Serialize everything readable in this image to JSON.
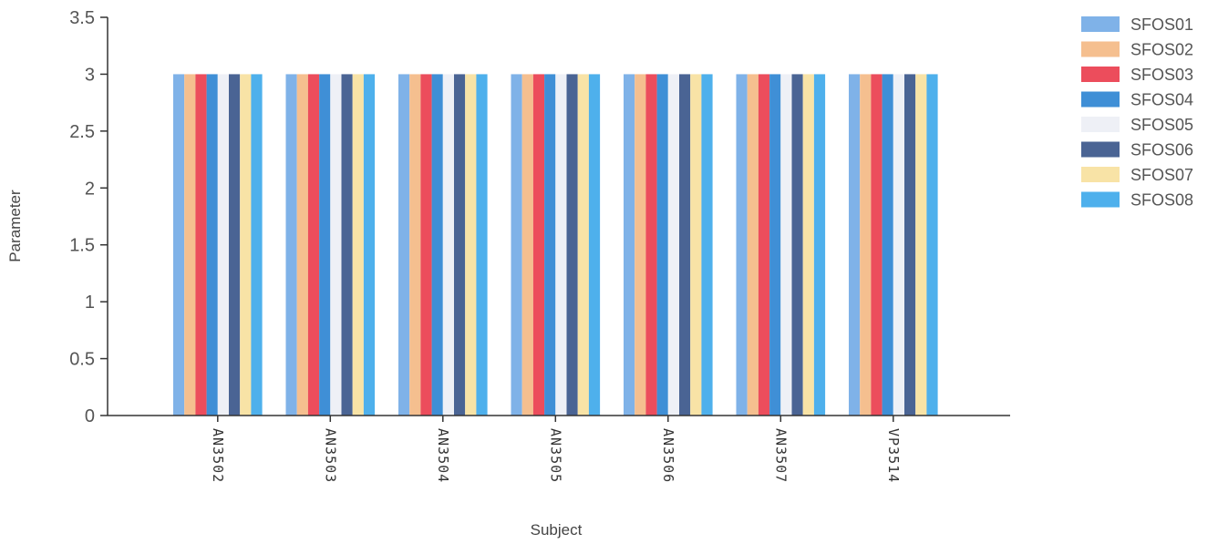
{
  "chart_data": {
    "type": "bar",
    "title": "",
    "xlabel": "Subject",
    "ylabel": "Parameter",
    "ylim": [
      0,
      3.5
    ],
    "yticks": [
      "0",
      "0.5",
      "1",
      "1.5",
      "2",
      "2.5",
      "3",
      "3.5"
    ],
    "grid": false,
    "legend_position": "top-right",
    "categories": [
      "AN3502",
      "AN3503",
      "AN3504",
      "AN3505",
      "AN3506",
      "AN3507",
      "VP3514"
    ],
    "series": [
      {
        "name": "SFOS01",
        "color": "#7fb2e8",
        "values": [
          3,
          3,
          3,
          3,
          3,
          3,
          3
        ]
      },
      {
        "name": "SFOS02",
        "color": "#f5bf8f",
        "values": [
          3,
          3,
          3,
          3,
          3,
          3,
          3
        ]
      },
      {
        "name": "SFOS03",
        "color": "#ec4d5c",
        "values": [
          3,
          3,
          3,
          3,
          3,
          3,
          3
        ]
      },
      {
        "name": "SFOS04",
        "color": "#3f8fd6",
        "values": [
          3,
          3,
          3,
          3,
          3,
          3,
          3
        ]
      },
      {
        "name": "SFOS05",
        "color": "#eef0f6",
        "values": [
          3,
          3,
          3,
          3,
          3,
          3,
          3
        ]
      },
      {
        "name": "SFOS06",
        "color": "#4a6494",
        "values": [
          3,
          3,
          3,
          3,
          3,
          3,
          3
        ]
      },
      {
        "name": "SFOS07",
        "color": "#f8e3a6",
        "values": [
          3,
          3,
          3,
          3,
          3,
          3,
          3
        ]
      },
      {
        "name": "SFOS08",
        "color": "#4eb0ec",
        "values": [
          3,
          3,
          3,
          3,
          3,
          3,
          3
        ]
      }
    ]
  }
}
